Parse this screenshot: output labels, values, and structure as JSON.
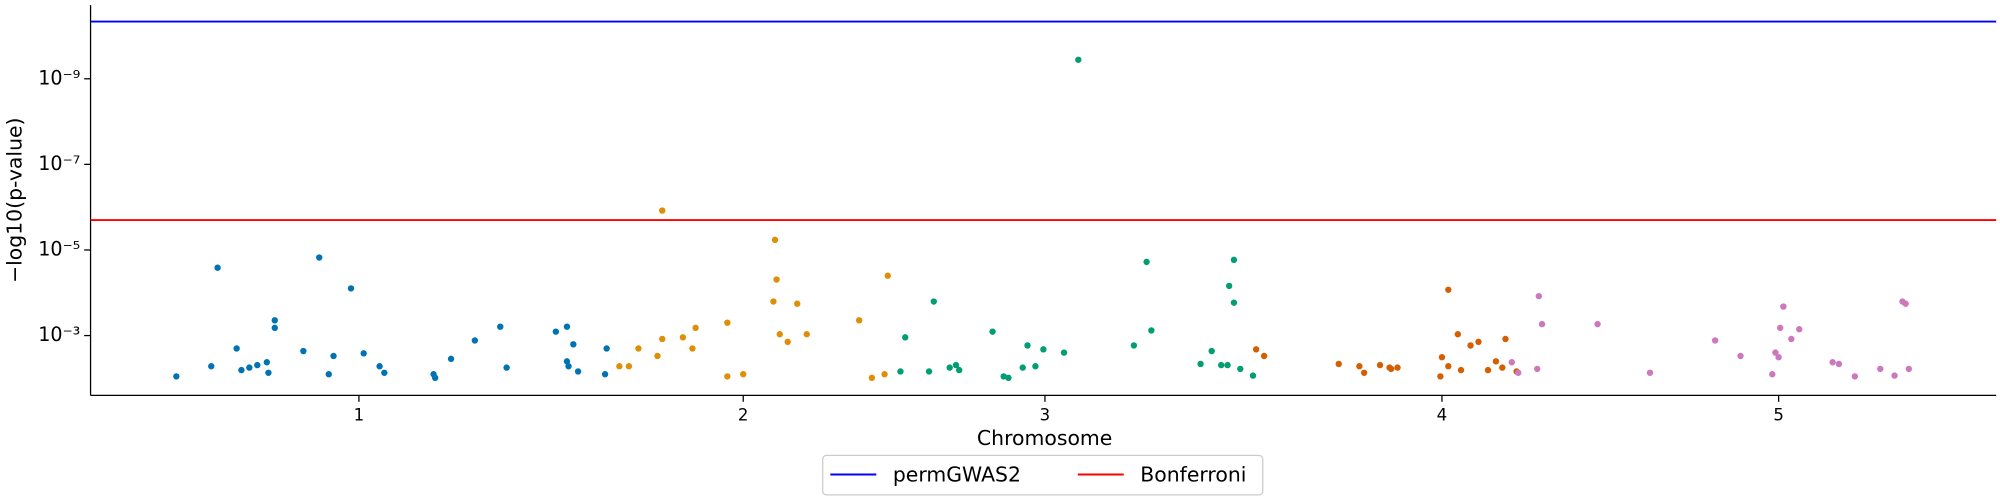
{
  "chart_data": {
    "type": "scatter",
    "xlabel": "Chromosome",
    "ylabel": "−log10(p-value)",
    "yscale": "log",
    "xlim": [
      0,
      120
    ],
    "ylim": [
      0.025,
      1.9e-11
    ],
    "xticks": [
      {
        "value": 16.9,
        "label": "1"
      },
      {
        "value": 41.1,
        "label": "2"
      },
      {
        "value": 60.1,
        "label": "3"
      },
      {
        "value": 85.1,
        "label": "4"
      },
      {
        "value": 106.3,
        "label": "5"
      }
    ],
    "yticks": [
      {
        "value": 1e-09,
        "label": "10⁻⁹"
      },
      {
        "value": 1e-07,
        "label": "10⁻⁷"
      },
      {
        "value": 1e-05,
        "label": "10⁻⁵"
      },
      {
        "value": 0.001,
        "label": "10⁻³"
      }
    ],
    "hlines": [
      {
        "name": "permGWAS2",
        "color": "#0000ff",
        "value": 4.6e-11
      },
      {
        "name": "Bonferroni",
        "color": "#ff0000",
        "value": 2e-06
      }
    ],
    "legend": "lower center outside",
    "series": [
      {
        "color": "#0173b2",
        "x": [
          5.4,
          7.6,
          8.0,
          9.2,
          9.5,
          10.0,
          10.5,
          11.1,
          11.2,
          11.6,
          11.6,
          13.4,
          14.4,
          15.0,
          15.3,
          16.4,
          17.2,
          18.2,
          18.5,
          21.6,
          21.7,
          22.7,
          24.2,
          25.8,
          26.2,
          29.3,
          30.0,
          30.0,
          30.1,
          30.4,
          30.7,
          32.4,
          32.5
        ],
        "values": [
          0.009,
          0.0052,
          2.6e-05,
          0.002,
          0.0064,
          0.0056,
          0.0049,
          0.0042,
          0.0074,
          0.00066,
          0.00044,
          0.0023,
          1.5e-05,
          0.008,
          0.003,
          7.9e-05,
          0.0026,
          0.0052,
          0.0074,
          0.008,
          0.0097,
          0.0035,
          0.0013,
          0.00062,
          0.0056,
          0.00081,
          0.00062,
          0.004,
          0.0052,
          0.0016,
          0.0069,
          0.008,
          0.002
        ]
      },
      {
        "color": "#de8f05",
        "x": [
          33.3,
          33.9,
          34.5,
          35.7,
          36.0,
          36.0,
          37.3,
          37.9,
          38.1,
          40.1,
          40.1,
          41.1,
          43.1,
          43.2,
          43.0,
          43.4,
          43.9,
          44.5,
          45.1,
          48.4,
          49.2,
          50.0,
          50.2
        ],
        "values": [
          0.0052,
          0.0052,
          0.002,
          0.003,
          1.2e-06,
          0.0012,
          0.0011,
          0.002,
          0.00066,
          0.0005,
          0.009,
          0.008,
          5.8e-06,
          4.9e-05,
          0.00016,
          0.00093,
          0.0014,
          0.00018,
          0.00093,
          0.00044,
          0.0097,
          0.008,
          4e-05
        ]
      },
      {
        "color": "#029e73",
        "x": [
          51.0,
          51.3,
          52.8,
          53.1,
          54.1,
          54.5,
          54.7,
          56.8,
          57.5,
          57.8,
          58.7,
          59.0,
          59.5,
          60.0,
          61.3,
          62.2,
          65.7,
          66.5,
          66.8,
          69.9,
          70.6,
          71.2,
          71.6,
          71.7,
          72.0,
          72.0,
          72.4,
          73.2
        ],
        "values": [
          0.0069,
          0.0011,
          0.0069,
          0.00016,
          0.0056,
          0.0049,
          0.0064,
          0.00081,
          0.009,
          0.0097,
          0.0056,
          0.0017,
          0.0052,
          0.0021,
          0.0025,
          3.6e-10,
          0.0017,
          1.9e-05,
          0.00076,
          0.0046,
          0.0023,
          0.0049,
          0.0049,
          6.9e-05,
          0.00017,
          1.7e-05,
          0.006,
          0.0086
        ]
      },
      {
        "color": "#d55e00",
        "x": [
          73.4,
          73.9,
          78.6,
          79.9,
          80.2,
          81.2,
          81.8,
          81.9,
          82.3,
          85.0,
          85.1,
          85.5,
          85.5,
          86.1,
          86.3,
          86.9,
          87.4,
          88.0,
          88.5,
          88.9,
          89.1,
          89.8
        ],
        "values": [
          0.0021,
          0.003,
          0.0046,
          0.0052,
          0.0074,
          0.0049,
          0.0056,
          0.006,
          0.0056,
          0.009,
          0.0032,
          8.5e-05,
          0.0052,
          0.00093,
          0.0064,
          0.0017,
          0.0014,
          0.0064,
          0.004,
          0.0056,
          0.0012,
          0.0069
        ]
      },
      {
        "color": "#cc78bc",
        "x": [
          89.5,
          89.9,
          91.1,
          91.2,
          91.4,
          94.9,
          98.2,
          102.3,
          103.9,
          105.9,
          106.1,
          106.3,
          106.4,
          106.6,
          107.1,
          107.6,
          109.7,
          110.1,
          111.1,
          112.7,
          113.6,
          114.1,
          114.3,
          114.5
        ],
        "values": [
          0.0042,
          0.0074,
          0.006,
          0.00012,
          0.00054,
          0.00054,
          0.0074,
          0.0013,
          0.003,
          0.008,
          0.0025,
          0.0032,
          0.00066,
          0.00021,
          0.0012,
          0.00071,
          0.0042,
          0.0046,
          0.009,
          0.006,
          0.0086,
          0.00016,
          0.00018,
          0.006
        ]
      }
    ]
  }
}
